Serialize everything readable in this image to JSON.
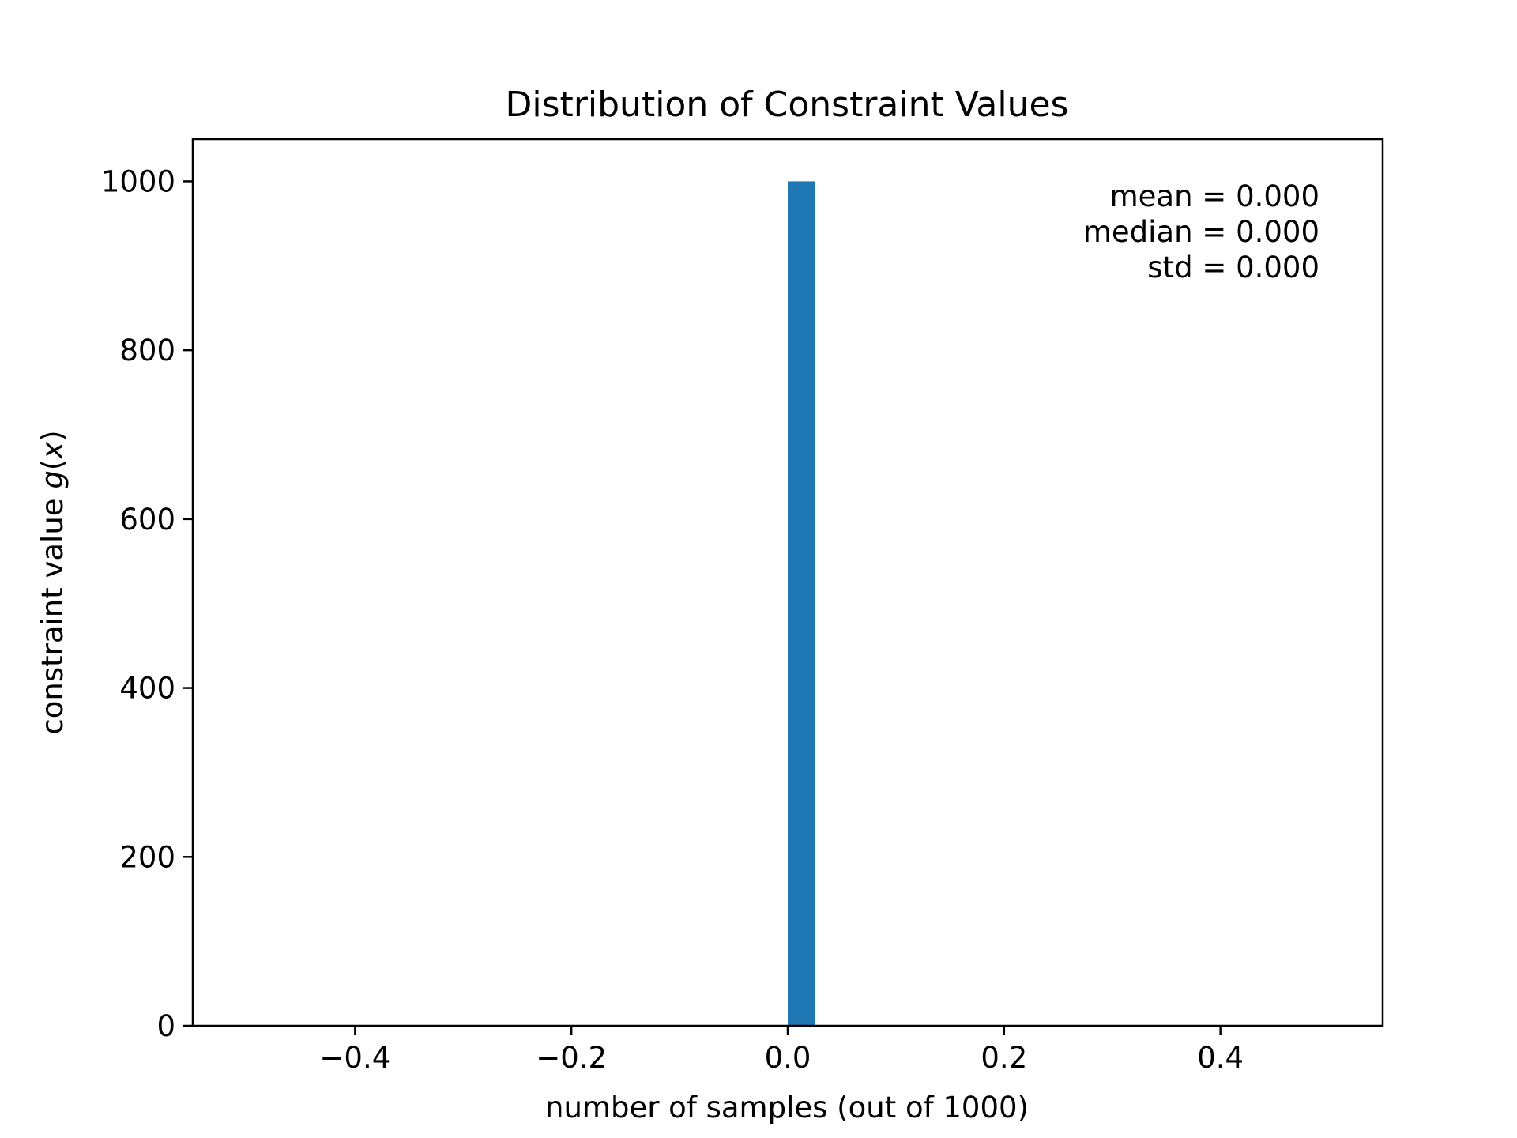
{
  "chart_data": {
    "type": "bar",
    "title": "Distribution of Constraint Values",
    "xlabel": "number of samples (out of 1000)",
    "ylabel_prefix": "constraint value ",
    "ylabel_math": "g",
    "ylabel_paren_open": "(",
    "ylabel_math_x": "x",
    "ylabel_paren_close": ")",
    "xlim": [
      -0.55,
      0.55
    ],
    "ylim": [
      0,
      1050
    ],
    "xticks": [
      -0.4,
      -0.2,
      0.0,
      0.2,
      0.4
    ],
    "xtick_labels": [
      "−0.4",
      "−0.2",
      "0.0",
      "0.2",
      "0.4"
    ],
    "yticks": [
      0,
      200,
      400,
      600,
      800,
      1000
    ],
    "ytick_labels": [
      "0",
      "200",
      "400",
      "600",
      "800",
      "1000"
    ],
    "bars": [
      {
        "x0": 0.0,
        "x1": 0.025,
        "value": 1000
      }
    ],
    "bar_color": "#1f77b4",
    "stats": [
      "mean = 0.000",
      "median = 0.000",
      "std = 0.000"
    ],
    "grid": false,
    "legend": "none"
  }
}
